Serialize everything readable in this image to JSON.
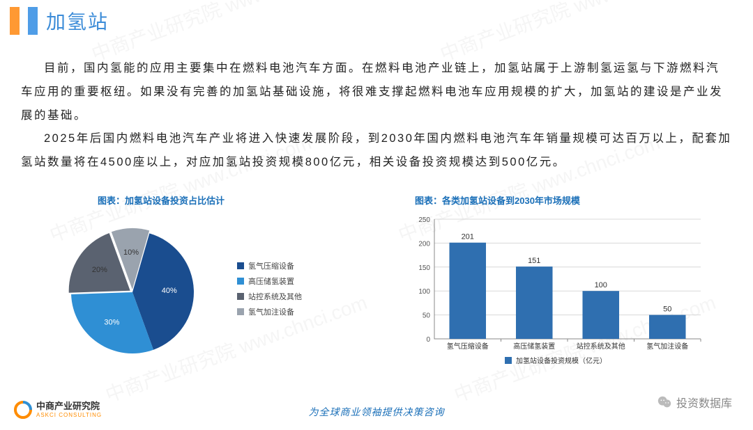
{
  "header": {
    "title": "加氢站"
  },
  "paragraphs": [
    "目前，国内氢能的应用主要集中在燃料电池汽车方面。在燃料电池产业链上，加氢站属于上游制氢运氢与下游燃料汽车应用的重要枢纽。如果没有完善的加氢站基础设施，将很难支撑起燃料电池车应用规模的扩大，加氢站的建设是产业发展的基础。",
    "2025年后国内燃料电池汽车产业将进入快速发展阶段，到2030年国内燃料电池汽车年销量规模可达百万以上，配套加氢站数量将在4500座以上，对应加氢站投资规模800亿元，相关设备投资规模达到500亿元。"
  ],
  "pie_chart": {
    "title": "图表：加氢站设备投资占比估计",
    "type": "pie",
    "slices": [
      {
        "label": "氢气压缩设备",
        "value": 40,
        "color": "#1a4d8f",
        "label_text": "40%"
      },
      {
        "label": "高压储氢装置",
        "value": 30,
        "color": "#2f8fd4",
        "label_text": "30%"
      },
      {
        "label": "站控系统及其他",
        "value": 20,
        "color": "#5a6270",
        "label_text": "20%"
      },
      {
        "label": "氢气加注设备",
        "value": 10,
        "color": "#9aa3ae",
        "label_text": "10%"
      }
    ],
    "label_fontsize": 11,
    "label_color": "#333333",
    "background_color": "#ffffff"
  },
  "bar_chart": {
    "title": "图表：各类加氢站设备到2030年市场规模",
    "type": "bar",
    "categories": [
      "氢气压缩设备",
      "高压储氢装置",
      "站控系统及其他",
      "氢气加注设备"
    ],
    "values": [
      201,
      151,
      100,
      50
    ],
    "bar_color": "#2f6fb0",
    "ylim": [
      0,
      250
    ],
    "ytick_step": 50,
    "axis_color": "#888888",
    "grid_color": "#d8d8d8",
    "label_fontsize": 10,
    "value_label_fontsize": 11,
    "value_label_color": "#333333",
    "series_label": "加氢站设备投资规模（亿元）",
    "background_color": "#ffffff"
  },
  "footer": {
    "org_name": "中商产业研究院",
    "org_sub": "ASKCI CONSULTING",
    "tagline": "为全球商业领袖提供决策咨询",
    "wechat_label": "投资数据库"
  },
  "watermark_text": "中商产业研究院 www.chnci.com",
  "colors": {
    "accent_orange": "#ff9933",
    "accent_blue": "#4f9de7",
    "title_blue": "#3c8cd8",
    "chart_title": "#1a6fb8"
  }
}
